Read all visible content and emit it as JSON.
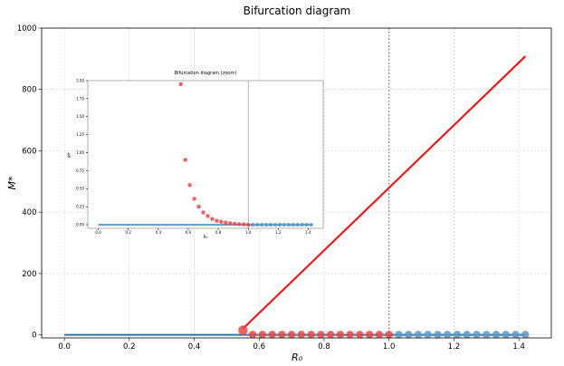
{
  "chart_data": [
    {
      "type": "scatter",
      "title": "Bifurcation diagram",
      "xlabel": "R₀",
      "ylabel": "M*",
      "xlim": [
        -0.07,
        1.5
      ],
      "ylim": [
        -10,
        1000
      ],
      "xticks": [
        0.0,
        0.2,
        0.4,
        0.6,
        0.8,
        1.0,
        1.2,
        1.4
      ],
      "yticks": [
        0,
        200,
        400,
        600,
        800,
        1000
      ],
      "grid": true,
      "vline_x": 1.0,
      "series": [
        {
          "kind": "line",
          "color": "#1f77b4",
          "x": [
            0.0,
            1.42
          ],
          "y": [
            0,
            0
          ]
        },
        {
          "kind": "line",
          "color": "#ff0000",
          "x": [
            0.55,
            1.42
          ],
          "y": [
            20,
            908
          ]
        },
        {
          "kind": "points",
          "color": "#ef4444",
          "x": [
            0.55,
            0.58,
            0.61,
            0.64,
            0.67,
            0.7,
            0.73,
            0.76,
            0.79,
            0.82,
            0.85,
            0.88,
            0.91,
            0.94,
            0.97,
            1.0
          ],
          "y": [
            15,
            1,
            1,
            1,
            1,
            1,
            1,
            1,
            1,
            1,
            1,
            1,
            1,
            1,
            1,
            1
          ]
        },
        {
          "kind": "points",
          "color": "#5b9ac8",
          "x": [
            1.03,
            1.06,
            1.09,
            1.12,
            1.15,
            1.18,
            1.21,
            1.24,
            1.27,
            1.3,
            1.33,
            1.36,
            1.39,
            1.42
          ],
          "y": [
            1,
            1,
            1,
            1,
            1,
            1,
            1,
            1,
            1,
            1,
            1,
            1,
            1,
            1
          ]
        }
      ]
    },
    {
      "type": "scatter",
      "title": "Bifurcation diagram (zoom)",
      "xlabel": "R₀",
      "ylabel": "M*",
      "xlim": [
        -0.07,
        1.5
      ],
      "ylim": [
        -0.05,
        2.0
      ],
      "xticks": [
        0.0,
        0.2,
        0.4,
        0.6,
        0.8,
        1.0,
        1.2,
        1.4
      ],
      "yticks": [
        0.0,
        0.25,
        0.5,
        0.75,
        1.0,
        1.25,
        1.5,
        1.75,
        2.0
      ],
      "ytick_labels": [
        "0.00",
        "0.25",
        "0.50",
        "0.75",
        "1.00",
        "1.25",
        "1.50",
        "1.75",
        "2.00"
      ],
      "vline_x": 1.0,
      "series": [
        {
          "kind": "line",
          "color": "#1f77b4",
          "x": [
            0.0,
            1.42
          ],
          "y": [
            0,
            0
          ]
        },
        {
          "kind": "points",
          "color": "#ef4444",
          "x": [
            0.55,
            0.58,
            0.61,
            0.64,
            0.67,
            0.7,
            0.73,
            0.76,
            0.79,
            0.82,
            0.85,
            0.88,
            0.91,
            0.94,
            0.97,
            1.0
          ],
          "y": [
            1.95,
            0.9,
            0.55,
            0.36,
            0.25,
            0.17,
            0.12,
            0.08,
            0.055,
            0.04,
            0.03,
            0.02,
            0.014,
            0.008,
            0.004,
            0.0
          ]
        },
        {
          "kind": "points",
          "color": "#5b9ac8",
          "x": [
            1.03,
            1.06,
            1.09,
            1.12,
            1.15,
            1.18,
            1.21,
            1.24,
            1.27,
            1.3,
            1.33,
            1.36,
            1.39,
            1.42
          ],
          "y": [
            0,
            0,
            0,
            0,
            0,
            0,
            0,
            0,
            0,
            0,
            0,
            0,
            0,
            0
          ]
        }
      ]
    }
  ]
}
